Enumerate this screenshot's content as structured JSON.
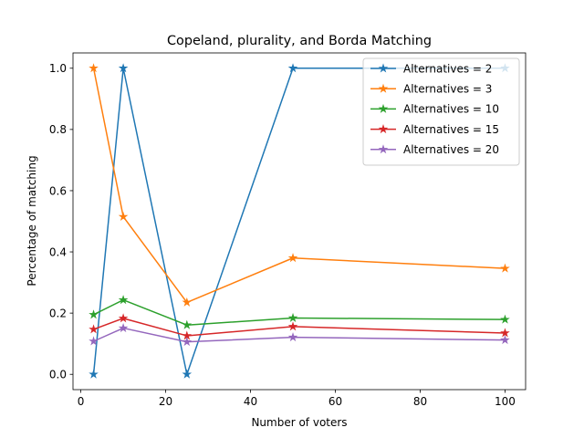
{
  "chart_data": {
    "type": "line",
    "title": "Copeland, plurality, and Borda Matching",
    "xlabel": "Number of voters",
    "ylabel": "Percentage of matching",
    "xlim": [
      -1.85,
      104.85
    ],
    "ylim": [
      -0.05,
      1.05
    ],
    "x_ticks": [
      0,
      20,
      40,
      60,
      80,
      100
    ],
    "x_tick_labels": [
      "0",
      "20",
      "40",
      "60",
      "80",
      "100"
    ],
    "y_ticks": [
      0.0,
      0.2,
      0.4,
      0.6,
      0.8,
      1.0
    ],
    "y_tick_labels": [
      "0.0",
      "0.2",
      "0.4",
      "0.6",
      "0.8",
      "1.0"
    ],
    "grid": false,
    "legend_position": "top-right",
    "marker": "star",
    "x": [
      3,
      10,
      25,
      50,
      100
    ],
    "series": [
      {
        "name": "Alternatives = 2",
        "color": "#1f77b4",
        "values": [
          0.0,
          1.0,
          0.0,
          1.0,
          1.0
        ]
      },
      {
        "name": "Alternatives = 3",
        "color": "#ff7f0e",
        "values": [
          1.0,
          0.515,
          0.235,
          0.38,
          0.346
        ]
      },
      {
        "name": "Alternatives = 10",
        "color": "#2ca02c",
        "values": [
          0.195,
          0.243,
          0.161,
          0.184,
          0.179
        ]
      },
      {
        "name": "Alternatives = 15",
        "color": "#d62728",
        "values": [
          0.147,
          0.183,
          0.126,
          0.156,
          0.135
        ]
      },
      {
        "name": "Alternatives = 20",
        "color": "#9467bd",
        "values": [
          0.108,
          0.151,
          0.106,
          0.121,
          0.112
        ]
      }
    ]
  }
}
